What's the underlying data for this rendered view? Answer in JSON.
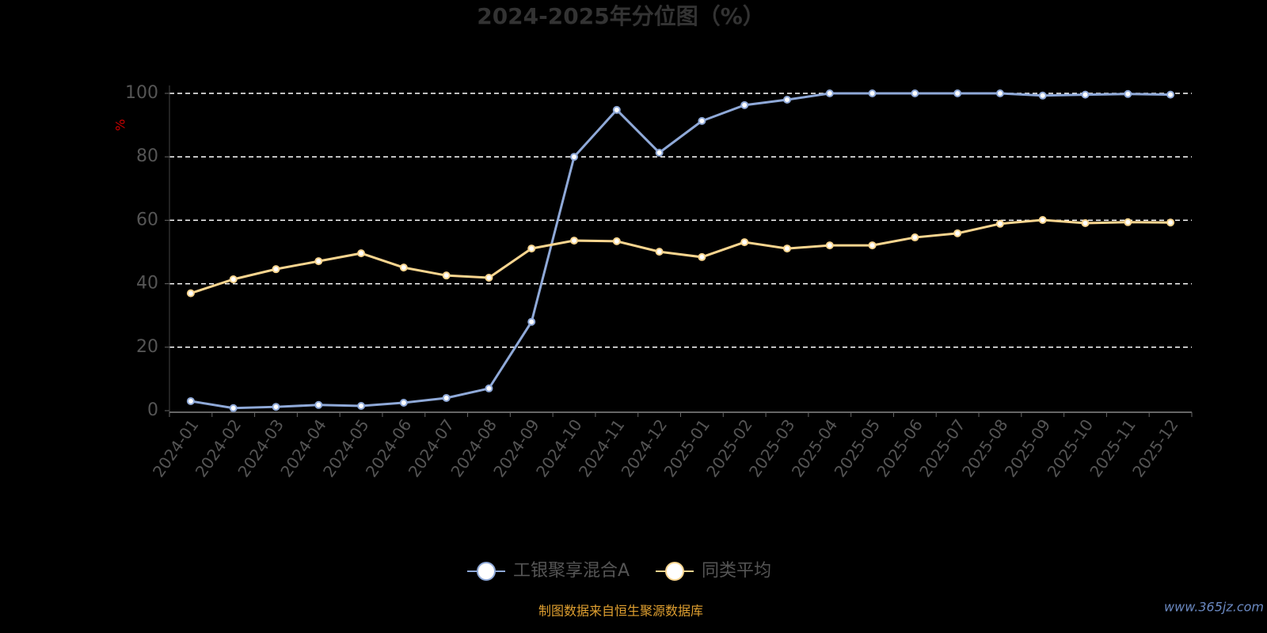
{
  "chart_data": {
    "type": "line",
    "title": "2024-2025年分位图（%）",
    "y_label": "%",
    "categories": [
      "2024-01",
      "2024-02",
      "2024-03",
      "2024-04",
      "2024-05",
      "2024-06",
      "2024-07",
      "2024-08",
      "2024-09",
      "2024-10",
      "2024-11",
      "2024-12",
      "2025-01",
      "2025-02",
      "2025-03",
      "2025-04",
      "2025-05",
      "2025-06",
      "2025-07",
      "2025-08",
      "2025-09",
      "2025-10",
      "2025-11",
      "2025-12"
    ],
    "series": [
      {
        "name": "工银聚享混合A",
        "color": "#8fa9d8",
        "values": [
          3,
          0.8,
          1.2,
          1.8,
          1.5,
          2.5,
          4,
          7,
          28,
          80,
          94.8,
          81.3,
          91.3,
          96.3,
          98,
          100,
          100,
          100,
          100,
          100,
          99.3,
          99.6,
          99.8,
          99.6
        ]
      },
      {
        "name": "同类平均",
        "color": "#f9d58f",
        "values": [
          37,
          41.4,
          44.6,
          47.1,
          49.6,
          45.1,
          42.6,
          41.9,
          51.1,
          53.6,
          53.4,
          50.1,
          48.4,
          53.1,
          51.1,
          52.1,
          52.1,
          54.6,
          55.9,
          58.9,
          60.1,
          59.1,
          59.4,
          59.3
        ]
      }
    ],
    "ylim": [
      0,
      100
    ],
    "yticks": [
      0,
      20,
      40,
      60,
      80,
      100
    ],
    "grid": true,
    "source": "制图数据来自恒生聚源数据库",
    "watermark": "www.365jz.com"
  }
}
